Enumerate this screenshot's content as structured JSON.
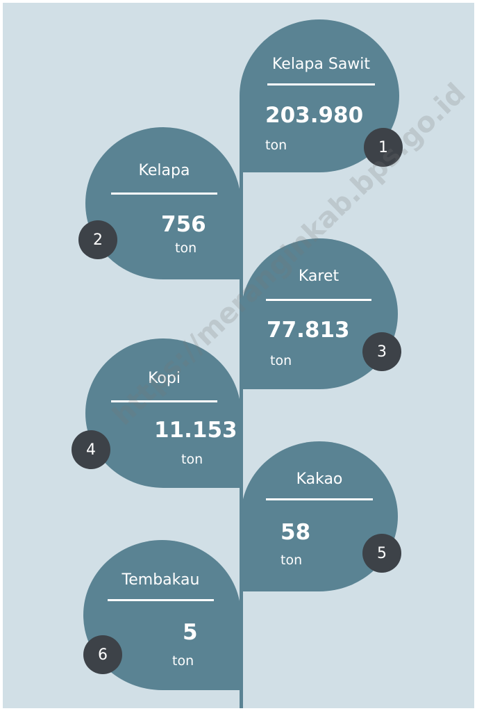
{
  "items": [
    {
      "name": "Kelapa Sawit",
      "value": "203.980",
      "unit": "ton",
      "number": "1"
    },
    {
      "name": "Kelapa",
      "value": "756",
      "unit": "ton",
      "number": "2"
    },
    {
      "name": "Karet",
      "value": "77.813",
      "unit": "ton",
      "number": "3"
    },
    {
      "name": "Kopi",
      "value": "11.153",
      "unit": "ton",
      "number": "4"
    },
    {
      "name": "Kakao",
      "value": "58",
      "unit": "ton",
      "number": "5"
    },
    {
      "name": "Tembakau",
      "value": "5",
      "unit": "ton",
      "number": "6"
    }
  ],
  "watermark": "https://meranginkab.bps.go.id"
}
